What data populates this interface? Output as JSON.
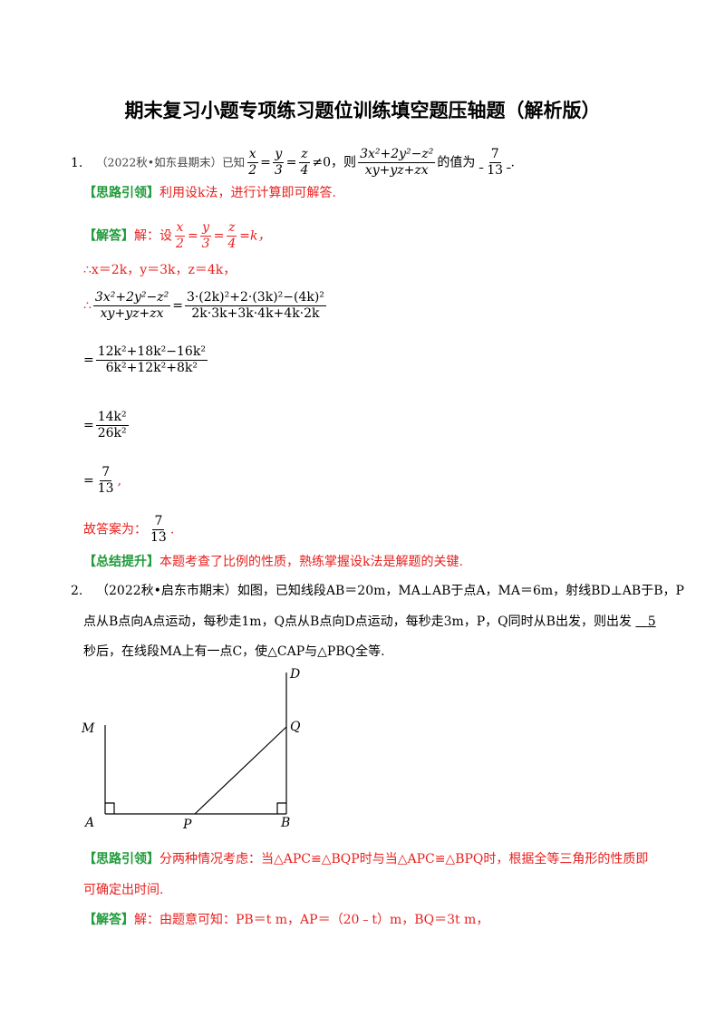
{
  "title": "期末复习小题专项练习题位训练填空题压轴题（解析版）",
  "q1": {
    "num": "1.",
    "source": "（2022秋•如东县期末）已知",
    "cond_x": "x",
    "cond_2": "2",
    "cond_y": "y",
    "cond_3": "3",
    "cond_z": "z",
    "cond_4": "4",
    "cond_tail": "≠0，则",
    "expr_num": "3x²+2y²−z²",
    "expr_den": "xy+yz+zx",
    "value_label": "的值为",
    "ans_num": "7",
    "ans_den": "13",
    "hint_tag": "【思路引领】",
    "hint_text": "利用设k法，进行计算即可解答.",
    "sol_tag": "【解答】",
    "sol_text": "解：设",
    "sol_eq_k": "=k，",
    "step1": "∴x＝2k，y＝3k，z＝4k，",
    "step2_num": "3·(2k)²+2·(3k)²−(4k)²",
    "step2_den": "2k·3k+3k·4k+4k·2k",
    "step3_num": "12k²+18k²−16k²",
    "step3_den": "6k²+12k²+8k²",
    "step4_num": "14k²",
    "step4_den": "26k²",
    "step5_num": "7",
    "step5_den": "13",
    "ans_label": "故答案为：",
    "ans_end": ".",
    "sum_tag": "【总结提升】",
    "sum_text": "本题考查了比例的性质，熟练掌握设k法是解题的关键."
  },
  "q2": {
    "num": "2.",
    "line1": "（2022秋•启东市期末）如图，已知线段AB＝20m，MA⊥AB于点A，MA＝6m，射线BD⊥AB于B，P",
    "line2": "点从B点向A点运动，每秒走1m，Q点从B点向D点运动，每秒走3m，P，Q同时从B出发，则出发",
    "answer": "5",
    "line3": "秒后，在线段MA上有一点C，使△CAP与△PBQ全等.",
    "labels": {
      "M": "M",
      "A": "A",
      "P": "P",
      "B": "B",
      "Q": "Q",
      "D": "D"
    },
    "hint_tag": "【思路引领】",
    "hint_line1": "分两种情况考虑：当△APC≌△BQP时与当△APC≌△BPQ时，根据全等三角形的性质即",
    "hint_line2": "可确定出时间.",
    "sol_tag": "【解答】",
    "sol_text": "解：由题意可知：PB＝t m，AP＝（20﹣t）m，BQ＝3t m，"
  }
}
